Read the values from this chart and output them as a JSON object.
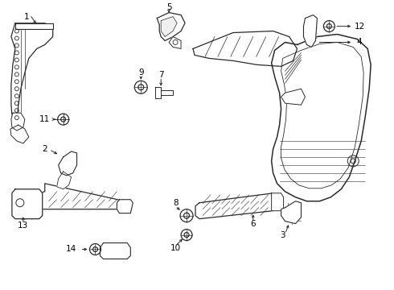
{
  "background_color": "#ffffff",
  "fig_width": 4.9,
  "fig_height": 3.6,
  "dpi": 100,
  "line_color": "#2a2a2a",
  "label_color": "#000000",
  "label_fontsize": 7.5
}
